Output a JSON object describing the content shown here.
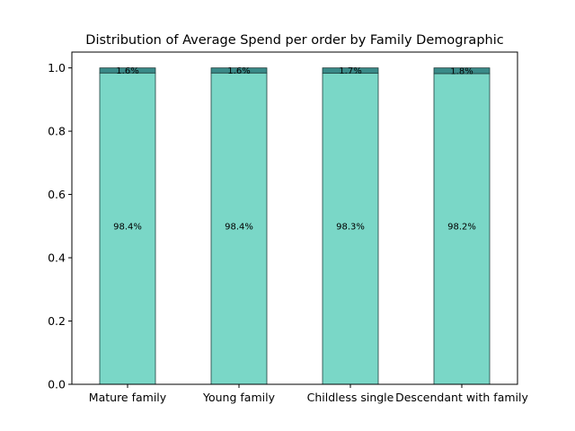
{
  "chart_data": {
    "type": "bar",
    "stacked": true,
    "title": "Distribution of Average Spend per order by Family Demographic",
    "xlabel": "",
    "ylabel": "",
    "categories": [
      "Mature family",
      "Young family",
      "Childless single",
      "Descendant with family"
    ],
    "series": [
      {
        "values": [
          0.984,
          0.984,
          0.983,
          0.982
        ],
        "labels": [
          "98.4%",
          "98.4%",
          "98.3%",
          "98.2%"
        ],
        "color": "#7ad7c7"
      },
      {
        "values": [
          0.016,
          0.016,
          0.017,
          0.018
        ],
        "labels": [
          "1.6%",
          "1.6%",
          "1.7%",
          "1.8%"
        ],
        "color": "#3a8a88"
      }
    ],
    "ylim": [
      0,
      1.05
    ],
    "yticks": [
      "0.0",
      "0.2",
      "0.4",
      "0.6",
      "0.8",
      "1.0"
    ],
    "ytick_values": [
      0,
      0.2,
      0.4,
      0.6,
      0.8,
      1.0
    ],
    "grid": false,
    "legend": false
  }
}
